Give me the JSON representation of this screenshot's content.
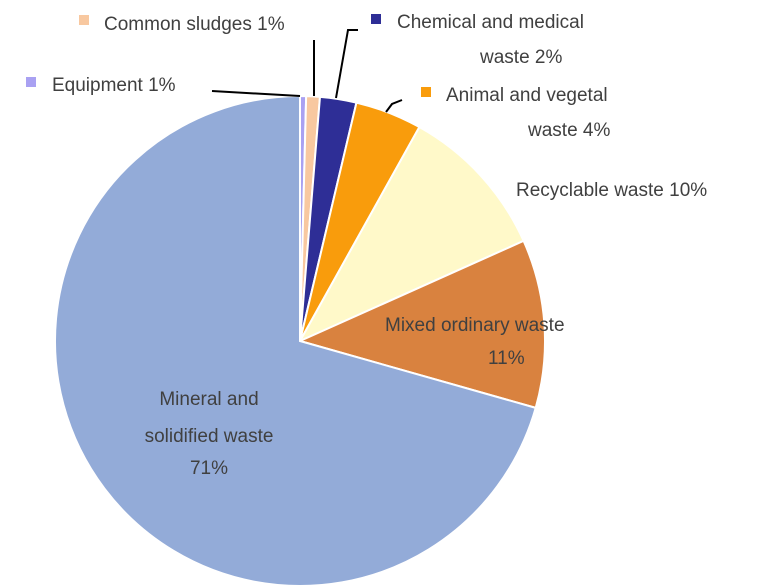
{
  "chart_data": {
    "type": "pie",
    "slices": [
      {
        "label": "Equipment",
        "percent": "1%",
        "value": 0.4,
        "color": "#a9a1f2"
      },
      {
        "label": "Common sludges",
        "percent": "1%",
        "value": 0.9,
        "color": "#f8c8a0"
      },
      {
        "label": "Chemical and medical waste",
        "percent": "2%",
        "value": 2.4,
        "color": "#2e2e96"
      },
      {
        "label": "Animal and vegetal waste",
        "percent": "4%",
        "value": 4.4,
        "color": "#f99c0c"
      },
      {
        "label": "Recyclable waste",
        "percent": "10%",
        "value": 10.2,
        "color": "#fff9c9"
      },
      {
        "label": "Mixed ordinary waste",
        "percent": "11%",
        "value": 11.1,
        "color": "#d9823f"
      },
      {
        "label": "Mineral and solidified waste",
        "percent": "71%",
        "value": 70.6,
        "color": "#93abd8"
      }
    ],
    "labels": {
      "equipment": "Equipment 1%",
      "sludges": "Common sludges 1%",
      "chemical_l1": "Chemical and medical",
      "chemical_l2": "waste 2%",
      "animal_l1": "Animal and vegetal",
      "animal_l2": "waste 4%",
      "recyclable": "Recyclable waste 10%",
      "mixed_l1": "Mixed ordinary waste",
      "mixed_l2": "11%",
      "mineral_l1": "Mineral and",
      "mineral_l2": "solidified waste",
      "mineral_l3": "71%"
    },
    "start_angle_deg": 0,
    "direction": "clockwise",
    "legend": "none"
  }
}
